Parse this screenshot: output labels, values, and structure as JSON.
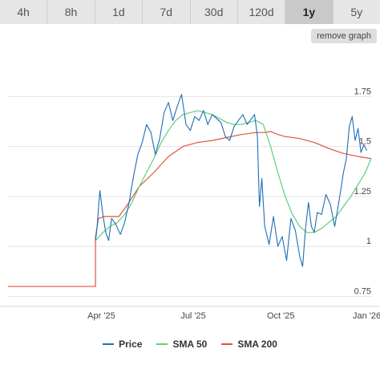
{
  "tabs": [
    {
      "label": "4h",
      "active": false
    },
    {
      "label": "8h",
      "active": false
    },
    {
      "label": "1d",
      "active": false
    },
    {
      "label": "7d",
      "active": false
    },
    {
      "label": "30d",
      "active": false
    },
    {
      "label": "120d",
      "active": false
    },
    {
      "label": "1y",
      "active": true
    },
    {
      "label": "5y",
      "active": false
    }
  ],
  "remove_graph_label": "remove graph",
  "colors": {
    "price": "#1f6eb5",
    "sma50": "#5ccf7a",
    "sma200": "#e0533f"
  },
  "chart_data": {
    "type": "line",
    "x_labels": [
      "Apr '25",
      "Jul '25",
      "Oct '25",
      "Jan '26"
    ],
    "y_ticks": [
      0.75,
      1,
      1.25,
      1.5,
      1.75
    ],
    "y_tick_labels": [
      "0.75",
      "1",
      "1.25",
      "1.5",
      "1.75"
    ],
    "ylim": [
      0.7,
      1.98
    ],
    "xlim": [
      0,
      12.45
    ],
    "grid": true,
    "legend_position": "bottom-center",
    "series": [
      {
        "name": "Price",
        "key": "price",
        "x": [
          3.0,
          3.05,
          3.1,
          3.15,
          3.25,
          3.35,
          3.45,
          3.55,
          3.7,
          3.85,
          4.0,
          4.15,
          4.3,
          4.45,
          4.6,
          4.75,
          4.9,
          5.05,
          5.2,
          5.35,
          5.5,
          5.65,
          5.8,
          5.95,
          6.1,
          6.25,
          6.4,
          6.55,
          6.7,
          6.85,
          7.0,
          7.15,
          7.3,
          7.45,
          7.6,
          7.75,
          7.9,
          8.05,
          8.2,
          8.35,
          8.45,
          8.55,
          8.62,
          8.7,
          8.8,
          8.95,
          9.1,
          9.25,
          9.4,
          9.55,
          9.7,
          9.85,
          10.0,
          10.1,
          10.2,
          10.3,
          10.4,
          10.5,
          10.6,
          10.75,
          10.9,
          11.05,
          11.2,
          11.35,
          11.5,
          11.6,
          11.7,
          11.8,
          11.9,
          12.0,
          12.1,
          12.2,
          12.3
        ],
        "y": [
          1.03,
          1.09,
          1.19,
          1.28,
          1.16,
          1.07,
          1.03,
          1.14,
          1.11,
          1.06,
          1.12,
          1.22,
          1.35,
          1.46,
          1.52,
          1.61,
          1.57,
          1.46,
          1.54,
          1.67,
          1.72,
          1.63,
          1.7,
          1.76,
          1.61,
          1.58,
          1.65,
          1.63,
          1.68,
          1.61,
          1.66,
          1.64,
          1.62,
          1.55,
          1.53,
          1.6,
          1.63,
          1.66,
          1.61,
          1.64,
          1.66,
          1.55,
          1.2,
          1.34,
          1.1,
          1.01,
          1.15,
          1.0,
          1.05,
          0.93,
          1.14,
          1.08,
          0.95,
          0.9,
          1.09,
          1.22,
          1.1,
          1.07,
          1.17,
          1.16,
          1.26,
          1.21,
          1.1,
          1.23,
          1.37,
          1.44,
          1.6,
          1.65,
          1.53,
          1.59,
          1.47,
          1.51,
          1.48
        ]
      },
      {
        "name": "SMA 50",
        "key": "sma50",
        "x": [
          3.0,
          3.25,
          3.5,
          3.75,
          4.0,
          4.25,
          4.5,
          4.75,
          5.0,
          5.25,
          5.5,
          5.75,
          6.0,
          6.25,
          6.5,
          6.75,
          7.0,
          7.25,
          7.5,
          7.75,
          8.0,
          8.25,
          8.5,
          8.75,
          9.0,
          9.25,
          9.5,
          9.75,
          10.0,
          10.25,
          10.5,
          10.75,
          11.0,
          11.25,
          11.5,
          11.75,
          12.0,
          12.25,
          12.45
        ],
        "y": [
          1.03,
          1.07,
          1.1,
          1.12,
          1.16,
          1.22,
          1.3,
          1.37,
          1.44,
          1.52,
          1.58,
          1.63,
          1.66,
          1.67,
          1.68,
          1.67,
          1.66,
          1.64,
          1.62,
          1.61,
          1.61,
          1.62,
          1.63,
          1.61,
          1.5,
          1.37,
          1.25,
          1.16,
          1.1,
          1.07,
          1.07,
          1.09,
          1.12,
          1.15,
          1.2,
          1.25,
          1.31,
          1.37,
          1.44
        ]
      },
      {
        "name": "SMA 200",
        "key": "sma200",
        "x": [
          3.0,
          3.1,
          3.3,
          3.5,
          3.8,
          4.1,
          4.5,
          5.0,
          5.5,
          6.0,
          6.5,
          7.0,
          7.5,
          8.0,
          8.5,
          8.8,
          9.0,
          9.25,
          9.5,
          10.0,
          10.5,
          11.0,
          11.5,
          12.0,
          12.45
        ],
        "y": [
          1.05,
          1.14,
          1.15,
          1.15,
          1.15,
          1.21,
          1.3,
          1.37,
          1.45,
          1.5,
          1.52,
          1.53,
          1.545,
          1.56,
          1.57,
          1.57,
          1.575,
          1.56,
          1.55,
          1.54,
          1.52,
          1.49,
          1.465,
          1.45,
          1.44
        ]
      }
    ],
    "pre_line": {
      "x": [
        0,
        3.0
      ],
      "y": [
        0.8,
        0.8
      ],
      "color_key": "sma200"
    }
  }
}
